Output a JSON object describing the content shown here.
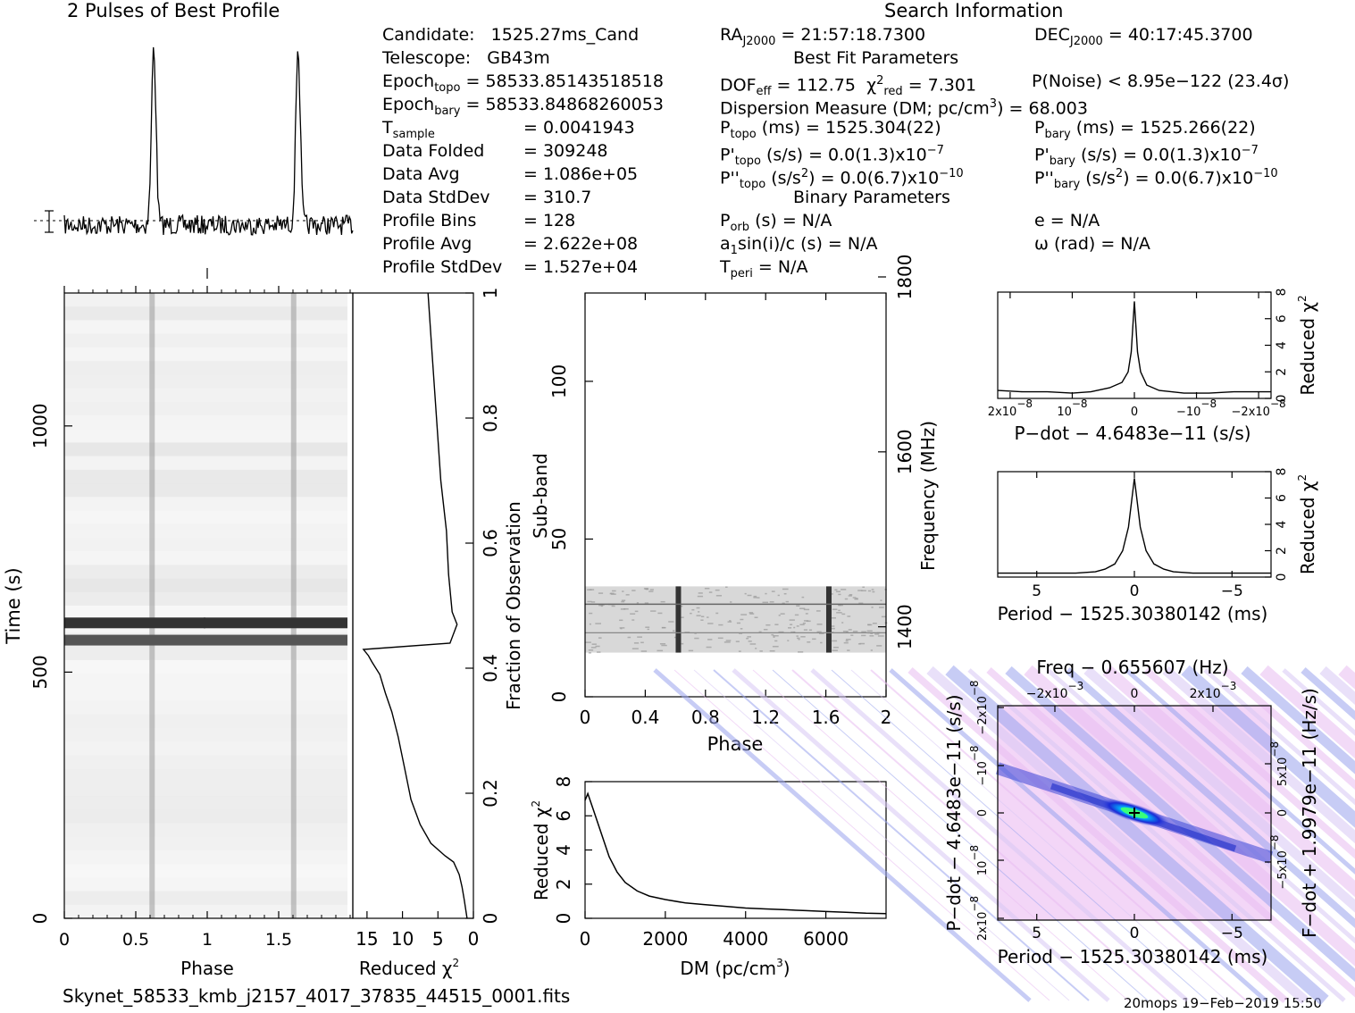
{
  "header": {
    "profile_title": "2 Pulses of Best Profile",
    "search_title": "Search Information",
    "best_fit_title": "Best Fit Parameters",
    "binary_title": "Binary Parameters"
  },
  "info": {
    "candidate": {
      "label": "Candidate:",
      "value": "1525.27ms_Cand"
    },
    "telescope": {
      "label": "Telescope:",
      "value": "GB43m"
    },
    "epoch_topo": {
      "label": "Epoch",
      "sub": "topo",
      "value": "= 58533.85143518518"
    },
    "epoch_bary": {
      "label": "Epoch",
      "sub": "bary",
      "value": "= 58533.84868260053"
    },
    "t_sample": {
      "label": "T",
      "sub": "sample",
      "value": "=   0.0041943"
    },
    "data_folded": {
      "label": "Data Folded",
      "value": "=   309248"
    },
    "data_avg": {
      "label": "Data Avg",
      "value": "=   1.086e+05"
    },
    "data_stddev": {
      "label": "Data StdDev",
      "value": "=   310.7"
    },
    "profile_bins": {
      "label": "Profile Bins",
      "value": "=   128"
    },
    "profile_avg": {
      "label": "Profile Avg",
      "value": "=   2.622e+08"
    },
    "profile_stddev": {
      "label": "Profile StdDev",
      "value": "=   1.527e+04"
    }
  },
  "search": {
    "ra_label": "RA",
    "ra_sub": "J2000",
    "ra_value": "= 21:57:18.7300",
    "dec_label": "DEC",
    "dec_sub": "J2000",
    "dec_value": "= 40:17:45.3700",
    "dof_label": "DOF",
    "dof_sub": "eff",
    "dof_value": "= 112.75",
    "chi_label": "χ",
    "chi_sup": "2",
    "chi_sub": "red",
    "chi_value": "= 7.301",
    "pnoise": "P(Noise) < 8.95e−122   (23.4σ)",
    "dm_line": "Dispersion Measure (DM; pc/cm",
    "dm_sup": "3",
    "dm_value": ") = 68.003",
    "ptopo_label": "P",
    "ptopo_sub": "topo",
    "ptopo_value": "(ms) =   1525.304(22)",
    "pbary_label": "P",
    "pbary_sub": "bary",
    "pbary_value": "(ms) =   1525.266(22)",
    "pdtopo_label": "P'",
    "pdtopo_sub": "topo",
    "pdtopo_value": "(s/s) = 0.0(1.3)x10",
    "pdtopo_exp": "−7",
    "pdbary_label": "P'",
    "pdbary_sub": "bary",
    "pdbary_value": "(s/s) = 0.0(1.3)x10",
    "pdbary_exp": "−7",
    "pddtopo_label": "P''",
    "pddtopo_sub": "topo",
    "pddtopo_value": "(s/s",
    "pddtopo_mid": ") = 0.0(6.7)x10",
    "pddtopo_exp": "−10",
    "pddbary_label": "P''",
    "pddbary_sub": "bary",
    "pddbary_value": "(s/s",
    "pddbary_mid": ") = 0.0(6.7)x10",
    "pddbary_exp": "−10",
    "sq": "2",
    "porb_label": "P",
    "porb_sub": "orb",
    "porb_value": "(s) = N/A",
    "e_value": "e = N/A",
    "a1_label": "a",
    "a1_sub": "1",
    "a1_value": "sin(i)/c (s) = N/A",
    "omega_value": "ω (rad) = N/A",
    "tperi_label": "T",
    "tperi_sub": "peri",
    "tperi_value": "= N/A"
  },
  "footer": {
    "filename": "Skynet_58533_kmb_j2157_4017_37835_44515_0001.fits",
    "stamp": "20mops 19−Feb−2019 15:50"
  },
  "chart_data": [
    {
      "type": "line",
      "name": "profile",
      "title": "2 Pulses of Best Profile",
      "x": [
        0,
        0.5,
        1.0,
        1.5,
        2.0
      ],
      "pulse_phases": [
        0.62,
        1.62
      ]
    },
    {
      "type": "heatmap",
      "name": "time-phase",
      "xlabel": "Phase",
      "ylabel": "Time (s)",
      "xlim": [
        0,
        2
      ],
      "ylim": [
        0,
        1270
      ],
      "xticks": [
        "0",
        "0.5",
        "1",
        "1.5"
      ],
      "yticks": [
        "0",
        "500",
        "1000"
      ],
      "yticks_vals": [
        0,
        500,
        1000
      ],
      "bright_rows_s": [
        565,
        600
      ]
    },
    {
      "type": "line",
      "name": "chi-vs-time",
      "xlabel": "Reduced χ",
      "xlabel_sup": "2",
      "ylabel": "Fraction of Observation",
      "xticks": [
        "15",
        "10",
        "5",
        "0"
      ],
      "xticks_vals": [
        15,
        10,
        5,
        0
      ],
      "yticks": [
        "0",
        "0.2",
        "0.4",
        "0.6",
        "0.8",
        "1"
      ],
      "yticks_vals": [
        0,
        0.2,
        0.4,
        0.6,
        0.8,
        1
      ],
      "xlim": [
        17,
        0
      ],
      "x": [
        0.9,
        1.3,
        1.6,
        2.0,
        2.8,
        4.0,
        6.0,
        7.5,
        8.8,
        9.7,
        10.6,
        11.5,
        12.4,
        13.2,
        14.3,
        14.8,
        15.5,
        3.3,
        2.3,
        3.0,
        3.5,
        3.8,
        4.6,
        5.2,
        5.8,
        6.4
      ],
      "y": [
        0,
        0.03,
        0.05,
        0.07,
        0.09,
        0.1,
        0.12,
        0.15,
        0.19,
        0.24,
        0.29,
        0.33,
        0.36,
        0.39,
        0.41,
        0.42,
        0.43,
        0.44,
        0.47,
        0.49,
        0.55,
        0.62,
        0.7,
        0.8,
        0.9,
        1.0
      ]
    },
    {
      "type": "heatmap",
      "name": "subband-phase",
      "xlabel": "Phase",
      "ylabel": "Sub-band",
      "y2label": "Frequency (MHz)",
      "xlim": [
        0,
        2
      ],
      "ylim": [
        0,
        128
      ],
      "xticks": [
        "0",
        "0.4",
        "0.8",
        "1.2",
        "1.6",
        "2"
      ],
      "xticks_vals": [
        0,
        0.4,
        0.8,
        1.2,
        1.6,
        2
      ],
      "yticks": [
        "0",
        "50",
        "100"
      ],
      "yticks_vals": [
        0,
        50,
        100
      ],
      "y2ticks": [
        "1400",
        "1600",
        "1800"
      ],
      "y2ticks_vals": [
        1400,
        1600,
        1800
      ],
      "y2lim": [
        1320,
        1800
      ],
      "filled_subbands": [
        14,
        35
      ],
      "pulse_phases": [
        0.62,
        1.62
      ]
    },
    {
      "type": "line",
      "name": "chi-vs-dm",
      "xlabel": "DM (pc/cm",
      "xlabel_sup": "3",
      "xlabel_end": ")",
      "ylabel": "Reduced χ",
      "ylabel_sup": "2",
      "xlim": [
        0,
        7500
      ],
      "ylim": [
        0,
        8
      ],
      "xticks": [
        "0",
        "2000",
        "4000",
        "6000"
      ],
      "xticks_vals": [
        0,
        2000,
        4000,
        6000
      ],
      "yticks": [
        "0",
        "2",
        "4",
        "6",
        "8"
      ],
      "yticks_vals": [
        0,
        2,
        4,
        6,
        8
      ],
      "x": [
        0,
        68,
        200,
        400,
        600,
        800,
        1000,
        1300,
        1600,
        2000,
        2500,
        3000,
        3500,
        4000,
        4500,
        5000,
        5500,
        6000,
        6500,
        7000,
        7500
      ],
      "y": [
        6.9,
        7.3,
        6.4,
        5.0,
        3.6,
        2.7,
        2.1,
        1.6,
        1.3,
        1.1,
        0.9,
        0.8,
        0.7,
        0.6,
        0.55,
        0.5,
        0.45,
        0.4,
        0.35,
        0.3,
        0.27
      ]
    },
    {
      "type": "line",
      "name": "chi-vs-pdot",
      "xlabel": "P−dot − 4.6483e−11 (s/s)",
      "ylabel": "Reduced χ",
      "ylabel_sup": "2",
      "xlim": [
        2.2e-08,
        -2.2e-08
      ],
      "ylim": [
        0,
        8
      ],
      "xticks": [
        "2x10",
        "10",
        "0",
        "−10",
        "−2x10"
      ],
      "xticks_exp": "−8",
      "xticks_vals": [
        2e-08,
        1e-08,
        0,
        -1e-08,
        -2e-08
      ],
      "yticks": [
        "0",
        "2",
        "4",
        "6",
        "8"
      ],
      "yticks_vals": [
        0,
        2,
        4,
        6,
        8
      ],
      "x": [
        2.2e-08,
        1.8e-08,
        1.4e-08,
        1e-08,
        7e-09,
        4e-09,
        2e-09,
        1e-09,
        5e-10,
        0,
        -5e-10,
        -1e-09,
        -2e-09,
        -4e-09,
        -8e-09,
        -1.2e-08,
        -1.6e-08,
        -2.2e-08
      ],
      "y": [
        0.6,
        0.5,
        0.5,
        0.4,
        0.5,
        0.8,
        1.2,
        2.0,
        3.5,
        7.3,
        3.5,
        2.0,
        1.0,
        0.6,
        0.4,
        0.4,
        0.5,
        0.5
      ]
    },
    {
      "type": "line",
      "name": "chi-vs-period",
      "xlabel": "Period − 1525.30380142 (ms)",
      "ylabel": "Reduced χ",
      "ylabel_sup": "2",
      "xlim": [
        7,
        -7
      ],
      "ylim": [
        0,
        8
      ],
      "xticks": [
        "5",
        "0",
        "−5"
      ],
      "xticks_vals": [
        5,
        0,
        -5
      ],
      "yticks": [
        "0",
        "2",
        "4",
        "6",
        "8"
      ],
      "yticks_vals": [
        0,
        2,
        4,
        6,
        8
      ],
      "x": [
        7,
        6,
        5,
        4,
        3,
        2,
        1.5,
        1.0,
        0.6,
        0.3,
        0,
        -0.3,
        -0.6,
        -1.0,
        -1.5,
        -2,
        -3,
        -4,
        -5,
        -6,
        -7
      ],
      "y": [
        0.3,
        0.3,
        0.3,
        0.3,
        0.3,
        0.4,
        0.6,
        1.0,
        2.0,
        3.8,
        7.5,
        3.8,
        2.0,
        1.0,
        0.6,
        0.4,
        0.3,
        0.3,
        0.3,
        0.3,
        0.3
      ]
    },
    {
      "type": "heatmap",
      "name": "period-pdot",
      "title": "Freq − 0.655607 (Hz)",
      "xlabel": "Period − 1525.30380142 (ms)",
      "ylabel": "P−dot − 4.6483e−11 (s/s)",
      "y2label": "F−dot + 1.9979e−11 (Hz/s)",
      "xlim": [
        7,
        -7
      ],
      "xticks": [
        "5",
        "0",
        "−5"
      ],
      "xticks_vals": [
        5,
        0,
        -5
      ],
      "topticks": [
        "−2x10",
        "0",
        "2x10"
      ],
      "topticks_exp": "−3",
      "yticks_left": [
        "2x10",
        "10",
        "0",
        "−10",
        "−2x10"
      ],
      "yticks_left_exp": [
        "−8",
        "−8",
        "",
        "−8",
        "−8"
      ],
      "yticks_right": [
        "5x10",
        "0",
        "−5x10"
      ],
      "yticks_right_exp": "−8",
      "peak": [
        0,
        0
      ]
    }
  ]
}
